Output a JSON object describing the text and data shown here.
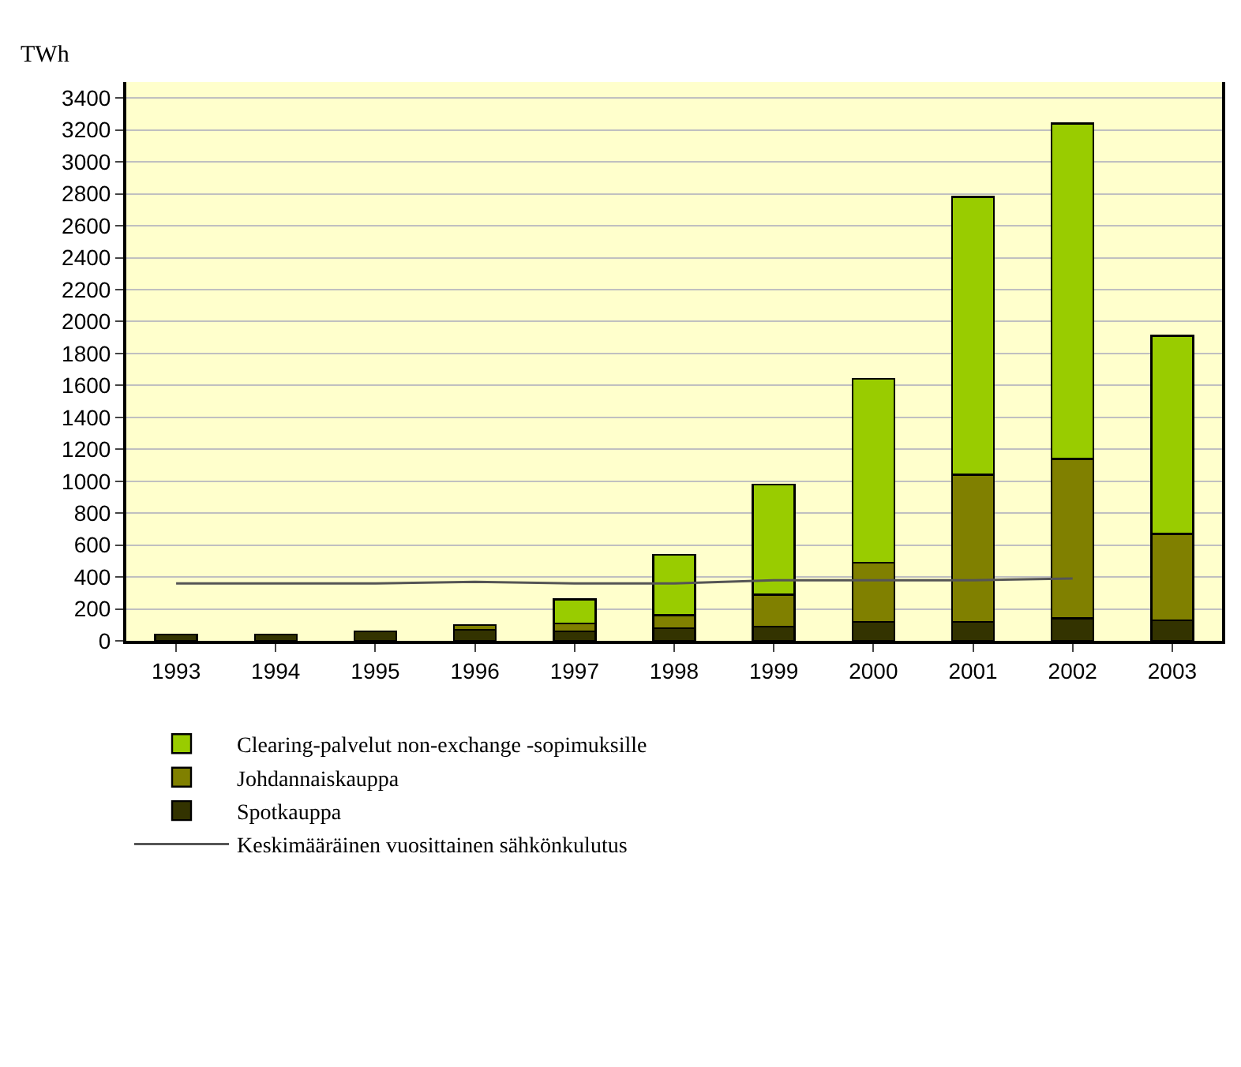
{
  "chart_data": {
    "type": "bar",
    "stacked": true,
    "ylabel": "TWh",
    "categories": [
      "1993",
      "1994",
      "1995",
      "1996",
      "1997",
      "1998",
      "1999",
      "2000",
      "2001",
      "2002",
      "2003"
    ],
    "series": [
      {
        "name": "Spotkauppa",
        "color": "#333300",
        "values": [
          40,
          40,
          60,
          70,
          60,
          80,
          90,
          120,
          120,
          140,
          130
        ]
      },
      {
        "name": "Johdannaiskauppa",
        "color": "#808000",
        "values": [
          null,
          null,
          null,
          30,
          50,
          80,
          200,
          370,
          920,
          1000,
          540
        ]
      },
      {
        "name": "Clearing-palvelut non-exchange -sopimuksille",
        "color": "#99cc00",
        "values": [
          null,
          null,
          null,
          null,
          150,
          380,
          690,
          1150,
          1740,
          2100,
          1240
        ]
      },
      {
        "name": "Keskimääräinen vuosittainen sähkönkulutus",
        "type": "line",
        "color": "#555555",
        "values": [
          360,
          360,
          360,
          370,
          360,
          360,
          380,
          380,
          380,
          390,
          null
        ]
      }
    ],
    "ylim": [
      0,
      3500
    ],
    "yticks": [
      0,
      200,
      400,
      600,
      800,
      1000,
      1200,
      1400,
      1600,
      1800,
      2000,
      2200,
      2400,
      2600,
      2800,
      3000,
      3200,
      3400
    ],
    "grid": "y",
    "legend": "bottom",
    "marker": "none"
  }
}
